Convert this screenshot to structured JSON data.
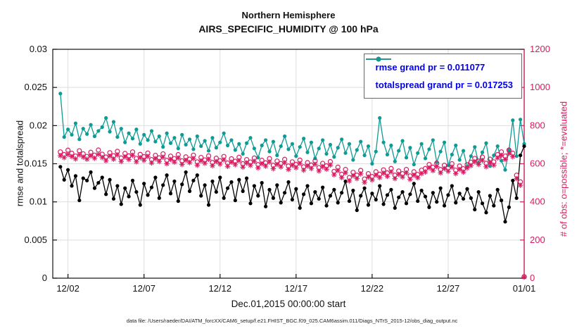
{
  "title": {
    "line1": "Northern Hemisphere",
    "line2": "AIRS_SPECIFIC_HUMIDITY @ 100 hPa"
  },
  "footer": "data file: /Users/raeder/DAI/ATM_forcXX/CAM6_setup/f.e21.FHIST_BGC.f09_025.CAM6assim.011/Diags_NTrS_2015-12/obs_diag_output.nc",
  "chart_data": {
    "type": "line",
    "x_label": "Dec.01,2015 00:00:00 start",
    "y_left_label": "rmse and totalspread",
    "y_right_label": "# of obs: o=possible; *=evaluated",
    "x_range": [
      0,
      31
    ],
    "y_left_range": [
      0,
      0.03
    ],
    "y_right_range": [
      0,
      1200
    ],
    "x_start": 0.5,
    "x_step": 0.25,
    "x_ticks": [
      {
        "v": 1,
        "label": "12/02"
      },
      {
        "v": 6,
        "label": "12/07"
      },
      {
        "v": 11,
        "label": "12/12"
      },
      {
        "v": 16,
        "label": "12/17"
      },
      {
        "v": 21,
        "label": "12/22"
      },
      {
        "v": 26,
        "label": "12/27"
      },
      {
        "v": 31,
        "label": "01/01"
      }
    ],
    "y_left_ticks": [
      {
        "v": 0,
        "label": "0"
      },
      {
        "v": 0.005,
        "label": "0.005"
      },
      {
        "v": 0.01,
        "label": "0.01"
      },
      {
        "v": 0.015,
        "label": "0.015"
      },
      {
        "v": 0.02,
        "label": "0.02"
      },
      {
        "v": 0.025,
        "label": "0.025"
      },
      {
        "v": 0.03,
        "label": "0.03"
      }
    ],
    "y_right_ticks": [
      {
        "v": 0,
        "label": "0"
      },
      {
        "v": 200,
        "label": "200"
      },
      {
        "v": 400,
        "label": "400"
      },
      {
        "v": 600,
        "label": "600"
      },
      {
        "v": 800,
        "label": "800"
      },
      {
        "v": 1000,
        "label": "1000"
      },
      {
        "v": 1200,
        "label": "1200"
      }
    ],
    "colors": {
      "rmse": "#000000",
      "totalspread": "#0E9B94",
      "obs": "#D81B60",
      "legend_text": "#0000EE",
      "grid": "#DEDEDE",
      "axis": "#111111"
    },
    "legend": {
      "items": [
        {
          "label": "rmse grand pr = 0.011077",
          "color": "#000000"
        },
        {
          "label": "totalspread grand pr = 0.017253",
          "color": "#0E9B94"
        }
      ]
    },
    "series": [
      {
        "name": "totalspread",
        "axis": "left",
        "line": true,
        "marker": "dot",
        "color": "#0E9B94",
        "values": [
          0.0242,
          0.0185,
          0.0195,
          0.0188,
          0.0203,
          0.0182,
          0.0196,
          0.0189,
          0.0201,
          0.0186,
          0.0193,
          0.0198,
          0.021,
          0.0192,
          0.0205,
          0.0185,
          0.0196,
          0.0178,
          0.019,
          0.0183,
          0.0195,
          0.0176,
          0.0188,
          0.0181,
          0.0193,
          0.0179,
          0.0186,
          0.0172,
          0.019,
          0.0177,
          0.0184,
          0.017,
          0.0188,
          0.0175,
          0.0182,
          0.0169,
          0.0186,
          0.0173,
          0.018,
          0.0167,
          0.0184,
          0.0171,
          0.0178,
          0.019,
          0.0174,
          0.0181,
          0.0168,
          0.0176,
          0.0163,
          0.0177,
          0.0184,
          0.017,
          0.0158,
          0.0174,
          0.0181,
          0.0166,
          0.0179,
          0.0161,
          0.0173,
          0.0186,
          0.0169,
          0.0176,
          0.016,
          0.0172,
          0.0183,
          0.0165,
          0.0178,
          0.0157,
          0.017,
          0.0181,
          0.0163,
          0.0175,
          0.0159,
          0.0171,
          0.0182,
          0.0164,
          0.0176,
          0.0155,
          0.0168,
          0.0179,
          0.0161,
          0.0173,
          0.015,
          0.0166,
          0.021,
          0.0178,
          0.0162,
          0.0174,
          0.0153,
          0.0167,
          0.018,
          0.0158,
          0.0171,
          0.0149,
          0.0164,
          0.0176,
          0.0157,
          0.0169,
          0.0181,
          0.0152,
          0.0166,
          0.0178,
          0.0148,
          0.0162,
          0.0174,
          0.0155,
          0.0167,
          0.0146,
          0.016,
          0.0172,
          0.0151,
          0.0165,
          0.0177,
          0.0147,
          0.0161,
          0.0173,
          0.0154,
          0.0142,
          0.0168,
          0.0207,
          0.016,
          0.0208,
          0.0176
        ]
      },
      {
        "name": "rmse",
        "axis": "left",
        "line": true,
        "marker": "dot",
        "color": "#000000",
        "values": [
          0.0146,
          0.0129,
          0.0142,
          0.0121,
          0.0134,
          0.0102,
          0.0131,
          0.0128,
          0.0139,
          0.0118,
          0.0125,
          0.0132,
          0.011,
          0.0129,
          0.0104,
          0.0121,
          0.0097,
          0.0118,
          0.0107,
          0.0128,
          0.0113,
          0.0096,
          0.0124,
          0.0109,
          0.0119,
          0.0132,
          0.0105,
          0.0122,
          0.0135,
          0.0111,
          0.0127,
          0.0101,
          0.0123,
          0.0139,
          0.0114,
          0.0128,
          0.0135,
          0.0108,
          0.0122,
          0.0096,
          0.0127,
          0.0113,
          0.0132,
          0.0105,
          0.0118,
          0.0126,
          0.0102,
          0.0129,
          0.0114,
          0.0131,
          0.0098,
          0.0121,
          0.0108,
          0.0125,
          0.0094,
          0.0116,
          0.0105,
          0.0122,
          0.0099,
          0.0112,
          0.0126,
          0.0103,
          0.0117,
          0.0092,
          0.011,
          0.0121,
          0.0098,
          0.0113,
          0.0104,
          0.0119,
          0.0095,
          0.0108,
          0.0116,
          0.0099,
          0.0112,
          0.0127,
          0.0101,
          0.0115,
          0.0089,
          0.0108,
          0.0118,
          0.0096,
          0.0111,
          0.0103,
          0.0121,
          0.0097,
          0.0109,
          0.0116,
          0.0092,
          0.0106,
          0.0113,
          0.0098,
          0.011,
          0.0124,
          0.0101,
          0.0115,
          0.0107,
          0.0093,
          0.0112,
          0.01,
          0.0118,
          0.0095,
          0.0109,
          0.0121,
          0.0099,
          0.0111,
          0.0104,
          0.0117,
          0.0105,
          0.009,
          0.0113,
          0.0098,
          0.0086,
          0.0108,
          0.0095,
          0.0116,
          0.0102,
          0.0074,
          0.0093,
          0.0128,
          0.0105,
          0.0161,
          0.0173
        ]
      },
      {
        "name": "obs_possible",
        "axis": "right",
        "line": false,
        "marker": "circle",
        "color": "#D81B60",
        "values": [
          662,
          648,
          671,
          655,
          640,
          668,
          652,
          638,
          660,
          645,
          672,
          650,
          635,
          658,
          642,
          665,
          630,
          654,
          641,
          662,
          628,
          649,
          637,
          656,
          622,
          644,
          631,
          652,
          618,
          640,
          627,
          648,
          615,
          636,
          624,
          645,
          610,
          633,
          620,
          641,
          607,
          629,
          616,
          638,
          604,
          626,
          613,
          634,
          600,
          622,
          609,
          630,
          596,
          618,
          605,
          627,
          592,
          614,
          601,
          623,
          588,
          610,
          597,
          619,
          584,
          606,
          593,
          615,
          580,
          602,
          589,
          611,
          560,
          582,
          545,
          570,
          528,
          555,
          540,
          565,
          520,
          548,
          533,
          558,
          545,
          568,
          552,
          575,
          540,
          562,
          548,
          570,
          536,
          558,
          544,
          566,
          575,
          596,
          582,
          603,
          570,
          592,
          578,
          600,
          566,
          588,
          574,
          595,
          608,
          628,
          614,
          635,
          602,
          624,
          610,
          648,
          662,
          640,
          672,
          655,
          540,
          505,
          8
        ]
      },
      {
        "name": "obs_evaluated",
        "axis": "right",
        "line": false,
        "marker": "asterisk",
        "color": "#D81B60",
        "values": [
          642,
          632,
          649,
          637,
          625,
          647,
          635,
          624,
          641,
          629,
          649,
          632,
          616,
          640,
          624,
          646,
          612,
          636,
          622,
          644,
          610,
          631,
          618,
          638,
          604,
          626,
          612,
          634,
          600,
          622,
          608,
          630,
          596,
          618,
          606,
          627,
          592,
          615,
          602,
          623,
          589,
          611,
          598,
          620,
          586,
          608,
          595,
          616,
          582,
          604,
          591,
          612,
          578,
          600,
          587,
          609,
          574,
          596,
          583,
          605,
          570,
          592,
          579,
          601,
          566,
          588,
          575,
          597,
          562,
          584,
          571,
          593,
          542,
          564,
          527,
          552,
          510,
          537,
          522,
          547,
          502,
          530,
          515,
          540,
          527,
          550,
          534,
          557,
          522,
          544,
          530,
          552,
          518,
          540,
          526,
          548,
          557,
          578,
          564,
          585,
          552,
          574,
          560,
          582,
          548,
          570,
          556,
          577,
          590,
          610,
          596,
          617,
          584,
          606,
          592,
          630,
          644,
          622,
          654,
          637,
          522,
          487,
          6
        ]
      }
    ]
  }
}
